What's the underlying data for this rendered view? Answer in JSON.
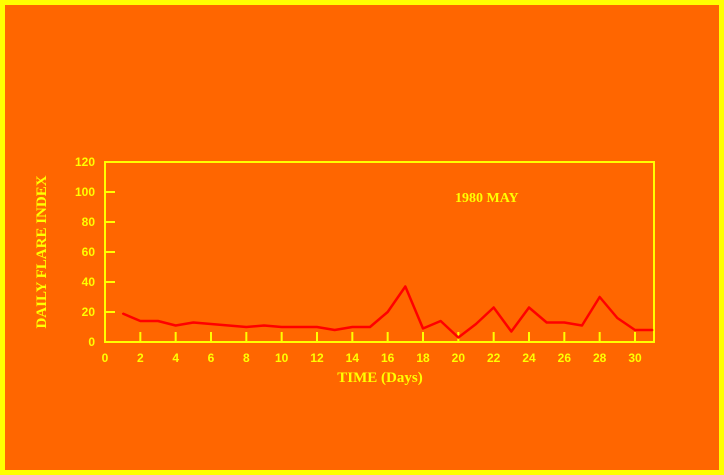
{
  "chart_data": {
    "type": "line",
    "title": "",
    "annotation": "1980  MAY",
    "xlabel": "TIME (Days)",
    "ylabel": "DAILY FLARE INDEX",
    "xlim": [
      0,
      31
    ],
    "ylim": [
      0,
      120
    ],
    "xticks": [
      0,
      2,
      4,
      6,
      8,
      10,
      12,
      14,
      16,
      18,
      20,
      22,
      24,
      26,
      28,
      30
    ],
    "yticks": [
      0,
      20,
      40,
      60,
      80,
      100,
      120
    ],
    "grid": false,
    "colors": {
      "background": "#FF6600",
      "axes": "#FFFF00",
      "line": "#FF0000"
    },
    "series": [
      {
        "x": [
          1,
          2,
          3,
          4,
          5,
          6,
          7,
          8,
          9,
          10,
          11,
          12,
          13,
          14,
          15,
          16,
          17,
          18,
          19,
          20,
          21,
          22,
          23,
          24,
          25,
          26,
          27,
          28,
          29,
          30,
          31
        ],
        "y": [
          19,
          14,
          14,
          11,
          13,
          12,
          11,
          10,
          11,
          10,
          10,
          10,
          8,
          10,
          10,
          20,
          37,
          9,
          14,
          3,
          12,
          23,
          7,
          23,
          13,
          13,
          11,
          30,
          16,
          8,
          8
        ]
      }
    ]
  }
}
